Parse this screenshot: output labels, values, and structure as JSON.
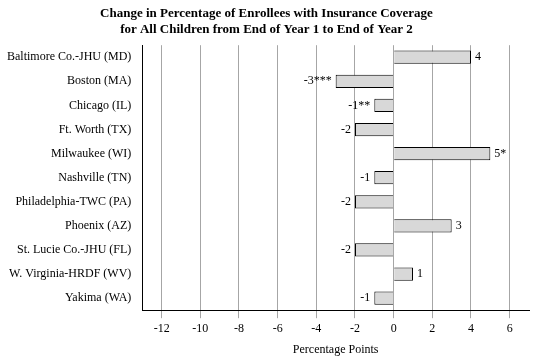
{
  "chart_data": {
    "type": "bar",
    "orientation": "horizontal",
    "title": "Change in Percentage of Enrollees with Insurance Coverage\nfor All Children from End of Year 1 to End of Year 2",
    "xlabel": "Percentage Points",
    "categories": [
      "Baltimore Co.-JHU (MD)",
      "Boston (MA)",
      "Chicago (IL)",
      "Ft. Worth (TX)",
      "Milwaukee (WI)",
      "Nashville (TN)",
      "Philadelphia-TWC (PA)",
      "Phoenix (AZ)",
      "St. Lucie Co.-JHU (FL)",
      "W. Virginia-HRDF (WV)",
      "Yakima (WA)"
    ],
    "values": [
      4,
      -3,
      -1,
      -2,
      5,
      -1,
      -2,
      3,
      -2,
      1,
      -1
    ],
    "value_labels": [
      "4",
      "-3***",
      "-1**",
      "-2",
      "5*",
      "-1",
      "-2",
      "3",
      "-2",
      "1",
      "-1"
    ],
    "data_labels": true,
    "color": "#d8d8d8",
    "xlim": [
      -13,
      7
    ],
    "xticks": [
      -12,
      -10,
      -8,
      -6,
      -4,
      -2,
      0,
      2,
      4,
      6
    ],
    "grid": true
  }
}
